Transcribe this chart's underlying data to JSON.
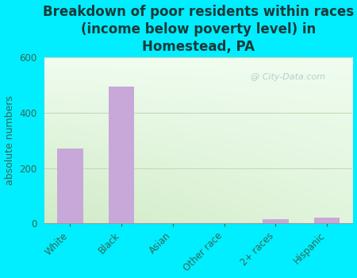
{
  "title": "Breakdown of poor residents within races\n(income below poverty level) in\nHomestead, PA",
  "categories": [
    "White",
    "Black",
    "Asian",
    "Other race",
    "2+ races",
    "Hispanic"
  ],
  "values": [
    270,
    495,
    0,
    0,
    15,
    20
  ],
  "bar_color": "#c8a8d8",
  "ylabel": "absolute numbers",
  "ylim": [
    0,
    600
  ],
  "yticks": [
    0,
    200,
    400,
    600
  ],
  "background_color": "#00eeff",
  "plot_bg_topleft": "#d0ecd0",
  "plot_bg_topright": "#eaf8ea",
  "plot_bg_bottom": "#d8ecc8",
  "grid_color": "#c0d8b0",
  "title_fontsize": 12,
  "title_color": "#1a3a3a",
  "ylabel_fontsize": 9,
  "tick_fontsize": 8.5,
  "tick_color": "#336655",
  "watermark": "City-Data.com",
  "bar_width": 0.5
}
